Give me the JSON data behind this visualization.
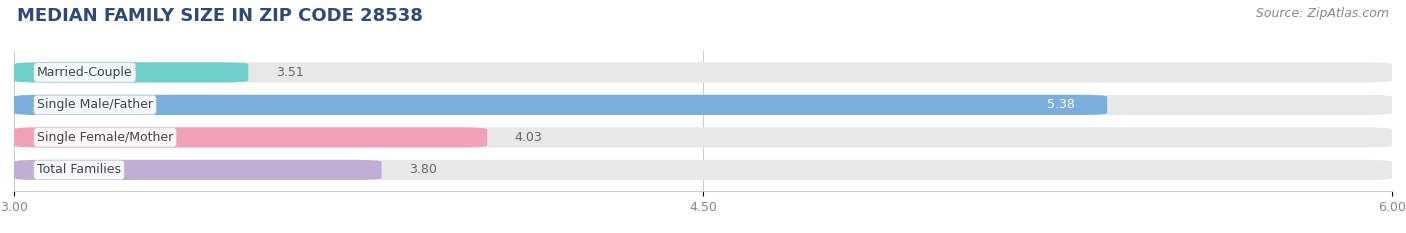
{
  "title": "MEDIAN FAMILY SIZE IN ZIP CODE 28538",
  "source": "Source: ZipAtlas.com",
  "categories": [
    "Married-Couple",
    "Single Male/Father",
    "Single Female/Mother",
    "Total Families"
  ],
  "values": [
    3.51,
    5.38,
    4.03,
    3.8
  ],
  "bar_colors": [
    "#6dceca",
    "#7aaedd",
    "#f2a0ba",
    "#c0aed4"
  ],
  "bar_background_color": "#e8e8e8",
  "x_min": 3.0,
  "x_max": 6.0,
  "x_ticks": [
    3.0,
    4.5,
    6.0
  ],
  "label_fontsize": 9,
  "title_fontsize": 13,
  "source_fontsize": 9,
  "value_color_inside": "#ffffff",
  "value_color_outside": "#666666",
  "bar_height": 0.62,
  "background_color": "#ffffff",
  "title_color": "#2d4b7a",
  "source_color": "#888888",
  "label_text_color": "#444444",
  "grid_color": "#cccccc",
  "tick_color": "#888888"
}
